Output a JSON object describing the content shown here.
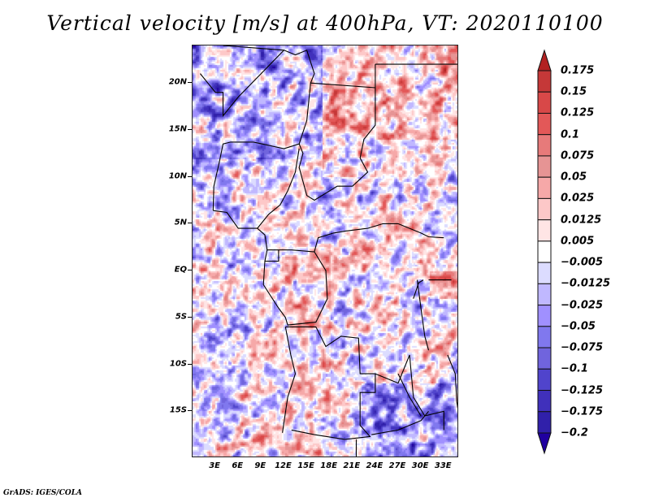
{
  "title": "Vertical velocity [m/s] at 400hPa, VT: 2020110100",
  "footer": "GrADS: IGES/COLA",
  "chart_data": {
    "type": "heatmap",
    "title": "Vertical velocity [m/s] at 400hPa, VT: 2020110100",
    "variable": "Vertical velocity",
    "units": "m/s",
    "level": "400hPa",
    "valid_time": "2020110100",
    "xlabel": "",
    "ylabel": "",
    "lon_range": [
      0,
      35
    ],
    "lat_range": [
      -20,
      24
    ],
    "x_ticks": [
      "3E",
      "6E",
      "9E",
      "12E",
      "15E",
      "18E",
      "21E",
      "24E",
      "27E",
      "30E",
      "33E"
    ],
    "x_tick_values": [
      3,
      6,
      9,
      12,
      15,
      18,
      21,
      24,
      27,
      30,
      33
    ],
    "y_ticks": [
      "20N",
      "15N",
      "10N",
      "5N",
      "EQ",
      "5S",
      "10S",
      "15S"
    ],
    "y_tick_values": [
      20,
      15,
      10,
      5,
      0,
      -5,
      -10,
      -15
    ],
    "grid": false,
    "legend_placement": "right",
    "colorbar": {
      "labels": [
        "0.175",
        "0.15",
        "0.125",
        "0.1",
        "0.075",
        "0.05",
        "0.025",
        "0.0125",
        "0.005",
        "−0.005",
        "−0.0125",
        "−0.025",
        "−0.05",
        "−0.075",
        "−0.1",
        "−0.125",
        "−0.175",
        "−0.2"
      ],
      "colors": [
        "#b22222",
        "#c53838",
        "#d84848",
        "#e35858",
        "#e77a7a",
        "#e69494",
        "#f6a8a8",
        "#fdc8c8",
        "#ffe5e5",
        "#ffffff",
        "#dcdcff",
        "#c0b8ff",
        "#a090ff",
        "#8078ee",
        "#7064dd",
        "#5044cc",
        "#4030bb",
        "#3020aa",
        "#2000a0"
      ],
      "top_arrow_color": "#b22222",
      "bottom_arrow_color": "#2000a0",
      "extends": "both"
    },
    "description": "Gridded vertical velocity field over central/west-central Africa with country boundaries; mixed positive (red) and negative (blue) fine-scale structures, strongest red over Angola/Congo coastal highlands and Lake Victoria region, strong blue over Niger/Chad and southern Zambia."
  }
}
